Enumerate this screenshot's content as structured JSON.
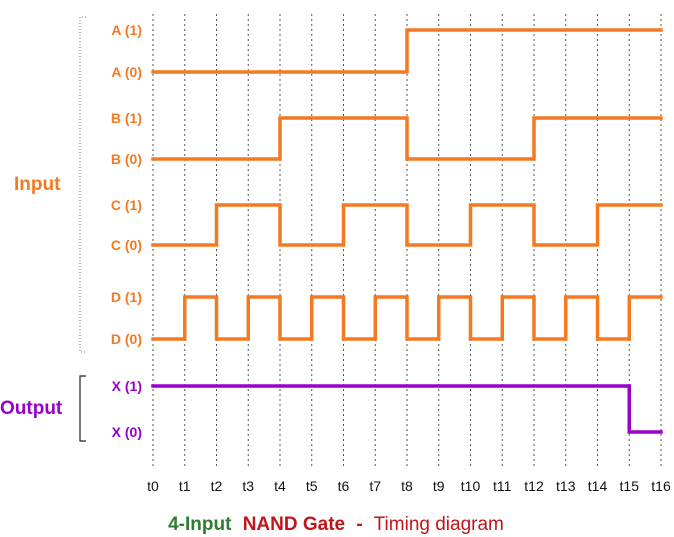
{
  "colors": {
    "input": "#f47920",
    "output": "#9900cc",
    "title_green": "#2e7d32",
    "title_red": "#c0151b",
    "title_black": "#222222"
  },
  "groups": {
    "input": "Input",
    "output": "Output"
  },
  "ticks": [
    "t0",
    "t1",
    "t2",
    "t3",
    "t4",
    "t5",
    "t6",
    "t7",
    "t8",
    "t9",
    "t10",
    "t11",
    "t12",
    "t13",
    "t14",
    "t15",
    "t16"
  ],
  "signals": [
    {
      "name": "A",
      "high_label": "A (1)",
      "low_label": "A (0)",
      "group": "input",
      "values": [
        0,
        0,
        0,
        0,
        0,
        0,
        0,
        0,
        1,
        1,
        1,
        1,
        1,
        1,
        1,
        1
      ]
    },
    {
      "name": "B",
      "high_label": "B (1)",
      "low_label": "B (0)",
      "group": "input",
      "values": [
        0,
        0,
        0,
        0,
        1,
        1,
        1,
        1,
        0,
        0,
        0,
        0,
        1,
        1,
        1,
        1
      ]
    },
    {
      "name": "C",
      "high_label": "C (1)",
      "low_label": "C (0)",
      "group": "input",
      "values": [
        0,
        0,
        1,
        1,
        0,
        0,
        1,
        1,
        0,
        0,
        1,
        1,
        0,
        0,
        1,
        1
      ]
    },
    {
      "name": "D",
      "high_label": "D (1)",
      "low_label": "D (0)",
      "group": "input",
      "values": [
        0,
        1,
        0,
        1,
        0,
        1,
        0,
        1,
        0,
        1,
        0,
        1,
        0,
        1,
        0,
        1
      ]
    },
    {
      "name": "X",
      "high_label": "X (1)",
      "low_label": "X (0)",
      "group": "output",
      "values": [
        1,
        1,
        1,
        1,
        1,
        1,
        1,
        1,
        1,
        1,
        1,
        1,
        1,
        1,
        1,
        0
      ]
    }
  ],
  "title": {
    "part1": "4-Input",
    "part2": "NAND Gate",
    "part3": "-",
    "part4": "Timing diagram"
  }
}
